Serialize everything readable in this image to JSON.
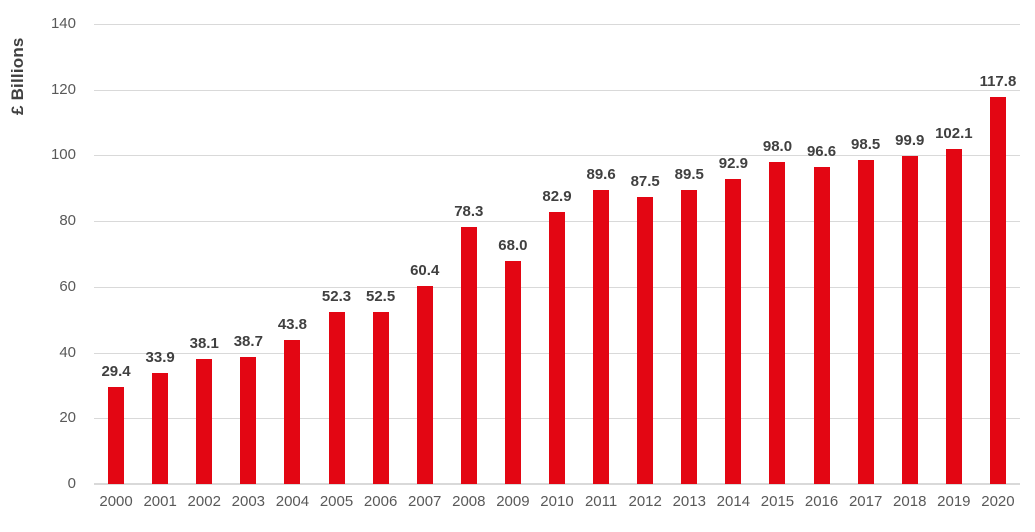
{
  "chart_data": {
    "type": "bar",
    "title": "",
    "xlabel": "",
    "ylabel": "£ Billions",
    "categories": [
      "2000",
      "2001",
      "2002",
      "2003",
      "2004",
      "2005",
      "2006",
      "2007",
      "2008",
      "2009",
      "2010",
      "2011",
      "2012",
      "2013",
      "2014",
      "2015",
      "2016",
      "2017",
      "2018",
      "2019",
      "2020"
    ],
    "values": [
      29.4,
      33.9,
      38.1,
      38.7,
      43.8,
      52.3,
      52.5,
      60.4,
      78.3,
      68.0,
      82.9,
      89.6,
      87.5,
      89.5,
      92.9,
      98.0,
      96.6,
      98.5,
      99.9,
      102.1,
      117.8
    ],
    "ylim": [
      0,
      140
    ],
    "ytick_interval": 20,
    "ytick_labels": [
      "0",
      "20",
      "40",
      "60",
      "80",
      "100",
      "120",
      "140"
    ],
    "grid": true,
    "legend": false,
    "value_labels_shown": true,
    "value_label_decimals": 1,
    "bar_color": "#e30613",
    "gridline_color": "#d9d9d9",
    "axis_line_color": "#d9d9d9",
    "tick_label_color": "#595959",
    "value_label_color": "#404040"
  }
}
